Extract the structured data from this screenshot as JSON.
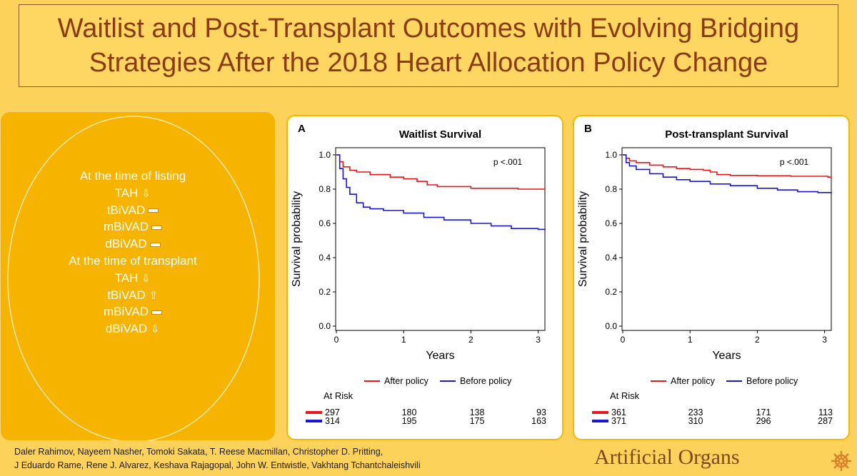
{
  "title": {
    "line1": "Waitlist and Post-Transplant Outcomes with Evolving Bridging",
    "line2": "Strategies After the 2018 Heart Allocation Policy Change"
  },
  "strategies": {
    "listing_heading": "At the time of listing",
    "listing": [
      {
        "name": "TAH",
        "trend": "down"
      },
      {
        "name": "tBiVAD",
        "trend": "flat"
      },
      {
        "name": "mBiVAD",
        "trend": "flat"
      },
      {
        "name": "dBiVAD",
        "trend": "flat"
      }
    ],
    "transplant_heading": "At the time of transplant",
    "transplant": [
      {
        "name": "TAH",
        "trend": "down"
      },
      {
        "name": "tBiVAD",
        "trend": "up"
      },
      {
        "name": "mBiVAD",
        "trend": "flat"
      },
      {
        "name": "dBiVAD",
        "trend": "down"
      }
    ]
  },
  "authors": {
    "line1": "Daler Rahimov, Nayeem Nasher, Tomoki Sakata, T. Reese Macmillan, Christopher D. Pritting,",
    "line2": "J Eduardo Rame, Rene J. Alvarez, Keshava Rajagopal, John W. Entwistle, Vakhtang Tchantchaleishvili"
  },
  "journal": "Artificial Organs",
  "colors": {
    "after": "#e8151b",
    "before": "#1a16d6"
  },
  "chart_data": [
    {
      "type": "line",
      "panel_label": "A",
      "title": "Waitlist Survival",
      "xlabel": "Years",
      "ylabel": "Survival probability",
      "xlim": [
        0,
        3.1
      ],
      "ylim": [
        0,
        1.0
      ],
      "xticks": [
        "0",
        "1",
        "2",
        "3"
      ],
      "yticks": [
        "0.0",
        "0.2",
        "0.4",
        "0.6",
        "0.8",
        "1.0"
      ],
      "annotation": "p <.001",
      "legend": [
        "After policy",
        "Before policy"
      ],
      "series": [
        {
          "name": "After policy",
          "x": [
            0,
            0.05,
            0.1,
            0.2,
            0.3,
            0.5,
            0.8,
            1.0,
            1.2,
            1.35,
            1.5,
            2.0,
            2.5,
            2.7,
            3.0,
            3.1
          ],
          "y": [
            1.0,
            0.96,
            0.93,
            0.91,
            0.9,
            0.885,
            0.87,
            0.86,
            0.845,
            0.825,
            0.815,
            0.805,
            0.805,
            0.8,
            0.8,
            0.8
          ]
        },
        {
          "name": "Before policy",
          "x": [
            0,
            0.05,
            0.1,
            0.15,
            0.2,
            0.3,
            0.4,
            0.5,
            0.7,
            1.0,
            1.3,
            1.6,
            2.0,
            2.3,
            2.6,
            3.0,
            3.1
          ],
          "y": [
            1.0,
            0.92,
            0.86,
            0.81,
            0.77,
            0.72,
            0.695,
            0.685,
            0.675,
            0.66,
            0.635,
            0.62,
            0.6,
            0.585,
            0.57,
            0.565,
            0.56
          ]
        }
      ],
      "at_risk_label": "At Risk",
      "at_risk": [
        {
          "name": "After policy",
          "values": [
            "297",
            "180",
            "138",
            "93"
          ]
        },
        {
          "name": "Before policy",
          "values": [
            "314",
            "195",
            "175",
            "163"
          ]
        }
      ]
    },
    {
      "type": "line",
      "panel_label": "B",
      "title": "Post-transplant Survival",
      "xlabel": "Years",
      "ylabel": "Survival probability",
      "xlim": [
        0,
        3.1
      ],
      "ylim": [
        0,
        1.0
      ],
      "xticks": [
        "0",
        "1",
        "2",
        "3"
      ],
      "yticks": [
        "0.0",
        "0.2",
        "0.4",
        "0.6",
        "0.8",
        "1.0"
      ],
      "annotation": "p <.001",
      "legend": [
        "After policy",
        "Before policy"
      ],
      "series": [
        {
          "name": "After policy",
          "x": [
            0,
            0.05,
            0.1,
            0.2,
            0.4,
            0.6,
            0.8,
            1.0,
            1.2,
            1.3,
            1.4,
            1.6,
            2.0,
            2.5,
            3.0,
            3.05,
            3.1
          ],
          "y": [
            1.0,
            0.98,
            0.965,
            0.955,
            0.94,
            0.93,
            0.92,
            0.915,
            0.91,
            0.9,
            0.885,
            0.88,
            0.878,
            0.875,
            0.875,
            0.87,
            0.865
          ]
        },
        {
          "name": "Before policy",
          "x": [
            0,
            0.05,
            0.1,
            0.2,
            0.4,
            0.6,
            0.8,
            1.0,
            1.3,
            1.6,
            2.0,
            2.3,
            2.6,
            2.9,
            3.1
          ],
          "y": [
            1.0,
            0.955,
            0.935,
            0.915,
            0.89,
            0.87,
            0.855,
            0.845,
            0.83,
            0.82,
            0.805,
            0.795,
            0.785,
            0.78,
            0.775
          ]
        }
      ],
      "at_risk_label": "At Risk",
      "at_risk": [
        {
          "name": "After policy",
          "values": [
            "361",
            "233",
            "171",
            "113"
          ]
        },
        {
          "name": "Before policy",
          "values": [
            "371",
            "310",
            "296",
            "287"
          ]
        }
      ]
    }
  ]
}
